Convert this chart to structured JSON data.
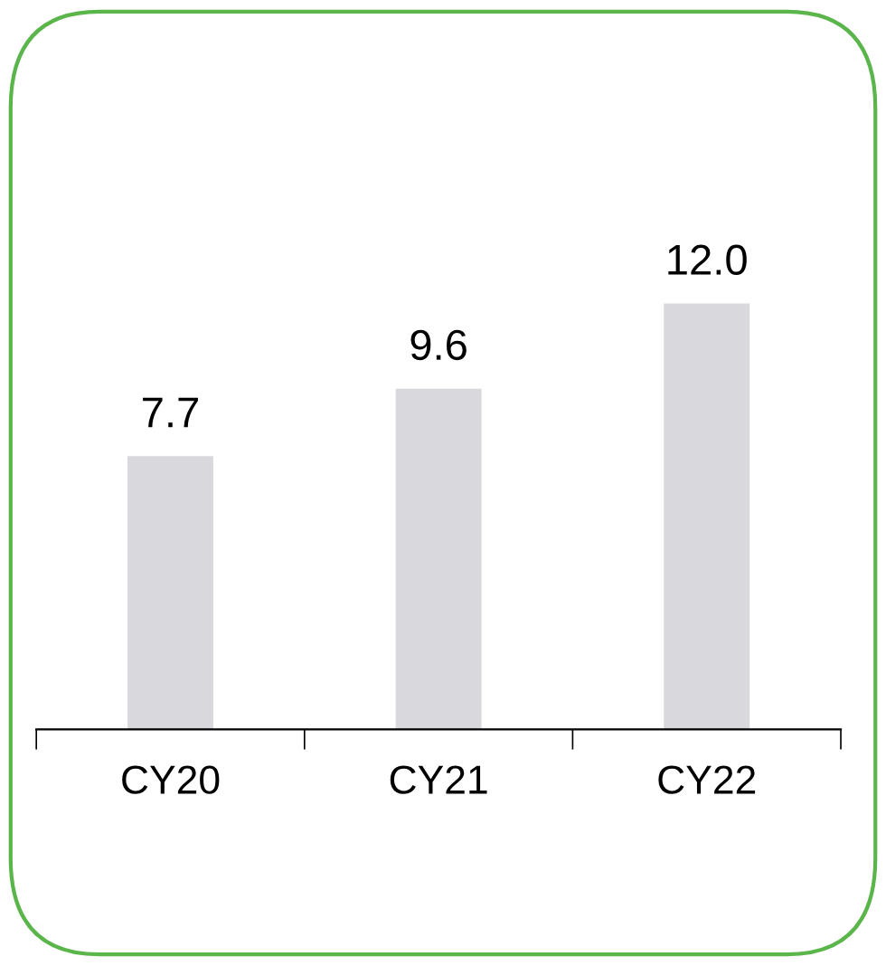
{
  "chart_data": {
    "type": "bar",
    "categories": [
      "CY20",
      "CY21",
      "CY22"
    ],
    "values": [
      7.7,
      9.6,
      12.0
    ],
    "color": "#d9d8dc",
    "value_labels": [
      "7.7",
      "9.6",
      "12.0"
    ],
    "grid": false,
    "tick_labels": "x"
  }
}
